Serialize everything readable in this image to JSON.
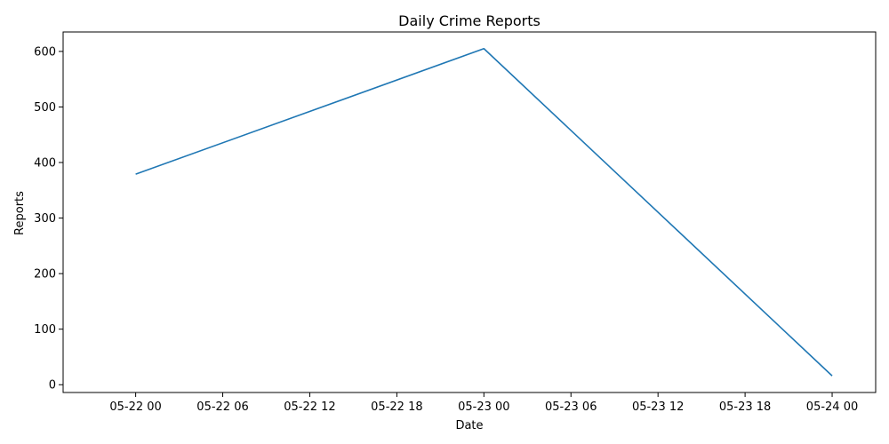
{
  "chart_data": {
    "type": "line",
    "title": "Daily Crime Reports",
    "xlabel": "Date",
    "ylabel": "Reports",
    "x": [
      "2023-05-22T00:00",
      "2023-05-23T00:00",
      "2023-05-24T00:00"
    ],
    "series": [
      {
        "values": [
          379,
          605,
          16
        ],
        "color": "#1f77b4"
      }
    ],
    "xlim": [
      "2023-05-21T19:00",
      "2023-05-24T03:00"
    ],
    "ylim": [
      -14,
      635
    ],
    "x_ticks": [
      {
        "value": "2023-05-22T00:00",
        "label": "05-22 00"
      },
      {
        "value": "2023-05-22T06:00",
        "label": "05-22 06"
      },
      {
        "value": "2023-05-22T12:00",
        "label": "05-22 12"
      },
      {
        "value": "2023-05-22T18:00",
        "label": "05-22 18"
      },
      {
        "value": "2023-05-23T00:00",
        "label": "05-23 00"
      },
      {
        "value": "2023-05-23T06:00",
        "label": "05-23 06"
      },
      {
        "value": "2023-05-23T12:00",
        "label": "05-23 12"
      },
      {
        "value": "2023-05-23T18:00",
        "label": "05-23 18"
      },
      {
        "value": "2023-05-24T00:00",
        "label": "05-24 00"
      }
    ],
    "y_ticks": [
      0,
      100,
      200,
      300,
      400,
      500,
      600
    ],
    "grid": false,
    "legend": "none"
  }
}
